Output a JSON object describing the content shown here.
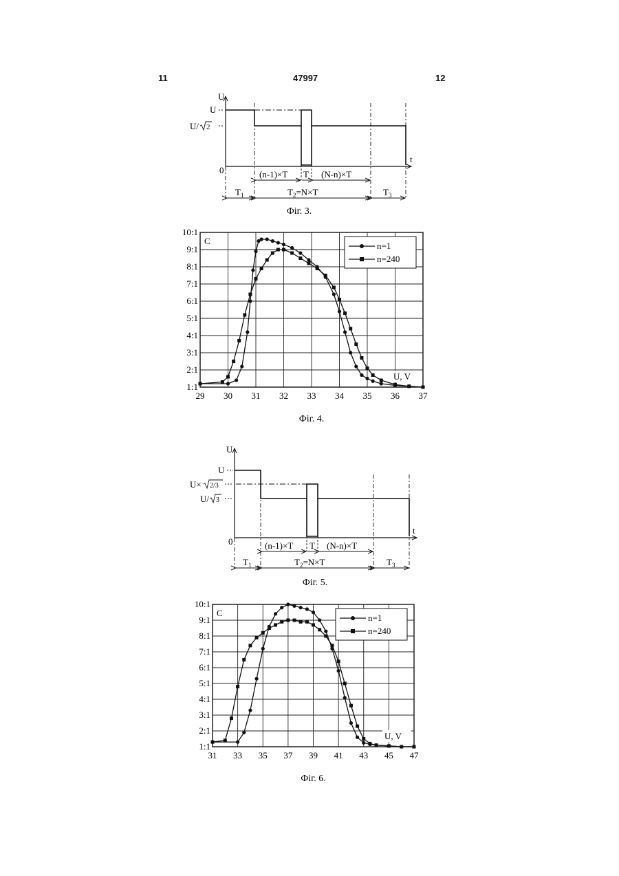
{
  "header": {
    "page_left": "11",
    "patent_number": "47997",
    "page_right": "12"
  },
  "fig3": {
    "y_axis": "U",
    "x_axis": "t",
    "origin": "0",
    "level_high": "U",
    "level_mid_base": "U/",
    "level_mid_sqrt": "2",
    "seg_before": "(n-1)×T",
    "seg_pulse": "T",
    "seg_after": "(N-n)×T",
    "period1": "T",
    "period1_sub": "1",
    "period2": "T",
    "period2_sub": "2",
    "period2_rest": "=N×T",
    "period3": "T",
    "period3_sub": "3",
    "caption": "Фіг. 3."
  },
  "fig5": {
    "y_axis": "U",
    "x_axis": "t",
    "origin": "0",
    "level_high": "U",
    "level_upper_base": "U×",
    "level_upper_sqrt": "2/3",
    "level_lower_base": "U/",
    "level_lower_sqrt": "3",
    "seg_before": "(n-1)×T",
    "seg_pulse": "T",
    "seg_after": "(N-n)×T",
    "period1": "T",
    "period1_sub": "1",
    "period2": "T",
    "period2_sub": "2",
    "period2_rest": "=N×T",
    "period3": "T",
    "period3_sub": "3",
    "caption": "Фіг. 5."
  },
  "chart_data": [
    {
      "type": "line",
      "caption": "Фіг. 4.",
      "ylabel_corner": "C",
      "xlabel": "U, V",
      "xlim": [
        29,
        37
      ],
      "ylim": [
        1,
        10
      ],
      "x_ticks": [
        "29",
        "30",
        "31",
        "32",
        "33",
        "34",
        "35",
        "36",
        "37"
      ],
      "y_ticks": [
        "1:1",
        "2:1",
        "3:1",
        "4:1",
        "5:1",
        "6:1",
        "7:1",
        "8:1",
        "9:1",
        "10:1"
      ],
      "grid": true,
      "legend_position": "top-right",
      "series": [
        {
          "name": "n=1",
          "marker": "circle",
          "x": [
            29.0,
            30.0,
            30.3,
            30.5,
            30.7,
            30.8,
            30.9,
            31.0,
            31.1,
            31.2,
            31.4,
            31.6,
            31.8,
            32.0,
            32.3,
            32.6,
            32.9,
            33.2,
            33.5,
            33.8,
            34.0,
            34.2,
            34.4,
            34.6,
            34.8,
            35.0,
            35.2,
            35.5,
            36.0,
            36.5,
            37.0
          ],
          "y": [
            1.2,
            1.2,
            1.4,
            2.2,
            4.2,
            6.0,
            7.8,
            8.9,
            9.5,
            9.6,
            9.6,
            9.5,
            9.4,
            9.3,
            9.1,
            8.8,
            8.4,
            8.0,
            7.4,
            6.4,
            5.4,
            4.2,
            3.0,
            2.2,
            1.7,
            1.5,
            1.35,
            1.2,
            1.1,
            1.05,
            1.0
          ]
        },
        {
          "name": "n=240",
          "marker": "square",
          "x": [
            29.0,
            29.8,
            30.0,
            30.2,
            30.4,
            30.6,
            30.8,
            31.0,
            31.2,
            31.4,
            31.6,
            31.8,
            32.0,
            32.3,
            32.6,
            32.9,
            33.2,
            33.5,
            33.8,
            34.0,
            34.2,
            34.4,
            34.6,
            34.8,
            35.0,
            35.2,
            35.5,
            36.0,
            36.5,
            37.0
          ],
          "y": [
            1.2,
            1.3,
            1.6,
            2.5,
            3.7,
            5.2,
            6.4,
            7.3,
            7.9,
            8.4,
            8.8,
            9.0,
            9.0,
            8.8,
            8.5,
            8.2,
            7.9,
            7.5,
            6.8,
            6.1,
            5.3,
            4.4,
            3.5,
            2.7,
            2.1,
            1.7,
            1.4,
            1.15,
            1.05,
            1.0
          ]
        }
      ]
    },
    {
      "type": "line",
      "caption": "Фіг. 6.",
      "ylabel_corner": "C",
      "xlabel": "U, V",
      "xlim": [
        31,
        47
      ],
      "ylim": [
        1,
        10
      ],
      "x_ticks": [
        "31",
        "33",
        "35",
        "37",
        "39",
        "41",
        "43",
        "45",
        "47"
      ],
      "y_ticks": [
        "1:1",
        "2:1",
        "3:1",
        "4:1",
        "5:1",
        "6:1",
        "7:1",
        "8:1",
        "9:1",
        "10:1"
      ],
      "grid": true,
      "legend_position": "top-right",
      "series": [
        {
          "name": "n=1",
          "marker": "circle",
          "x": [
            31.0,
            33.0,
            33.5,
            34.0,
            34.5,
            35.0,
            35.5,
            36.0,
            36.5,
            37.0,
            37.5,
            38.0,
            38.5,
            39.0,
            39.5,
            40.0,
            40.5,
            41.0,
            41.5,
            42.0,
            42.5,
            43.0,
            43.5,
            44.0,
            45.0,
            46.0,
            47.0
          ],
          "y": [
            1.3,
            1.3,
            1.9,
            3.3,
            5.3,
            7.2,
            8.6,
            9.4,
            9.8,
            10.0,
            9.9,
            9.8,
            9.7,
            9.5,
            9.0,
            8.3,
            7.2,
            5.8,
            4.1,
            2.5,
            1.6,
            1.25,
            1.15,
            1.1,
            1.05,
            1.0,
            1.0
          ]
        },
        {
          "name": "n=240",
          "marker": "square",
          "x": [
            31.0,
            32.0,
            32.5,
            33.0,
            33.5,
            34.0,
            34.5,
            35.0,
            35.5,
            36.0,
            36.5,
            37.0,
            37.5,
            38.0,
            38.5,
            39.0,
            39.5,
            40.0,
            40.5,
            41.0,
            41.5,
            42.0,
            42.5,
            43.0,
            43.5,
            44.0,
            45.0,
            46.0,
            47.0
          ],
          "y": [
            1.3,
            1.4,
            2.8,
            4.8,
            6.5,
            7.4,
            7.9,
            8.2,
            8.5,
            8.7,
            8.9,
            9.0,
            9.0,
            8.9,
            8.9,
            8.7,
            8.4,
            8.0,
            7.4,
            6.4,
            5.0,
            3.6,
            2.3,
            1.5,
            1.2,
            1.1,
            1.05,
            1.0,
            1.0
          ]
        }
      ]
    }
  ]
}
